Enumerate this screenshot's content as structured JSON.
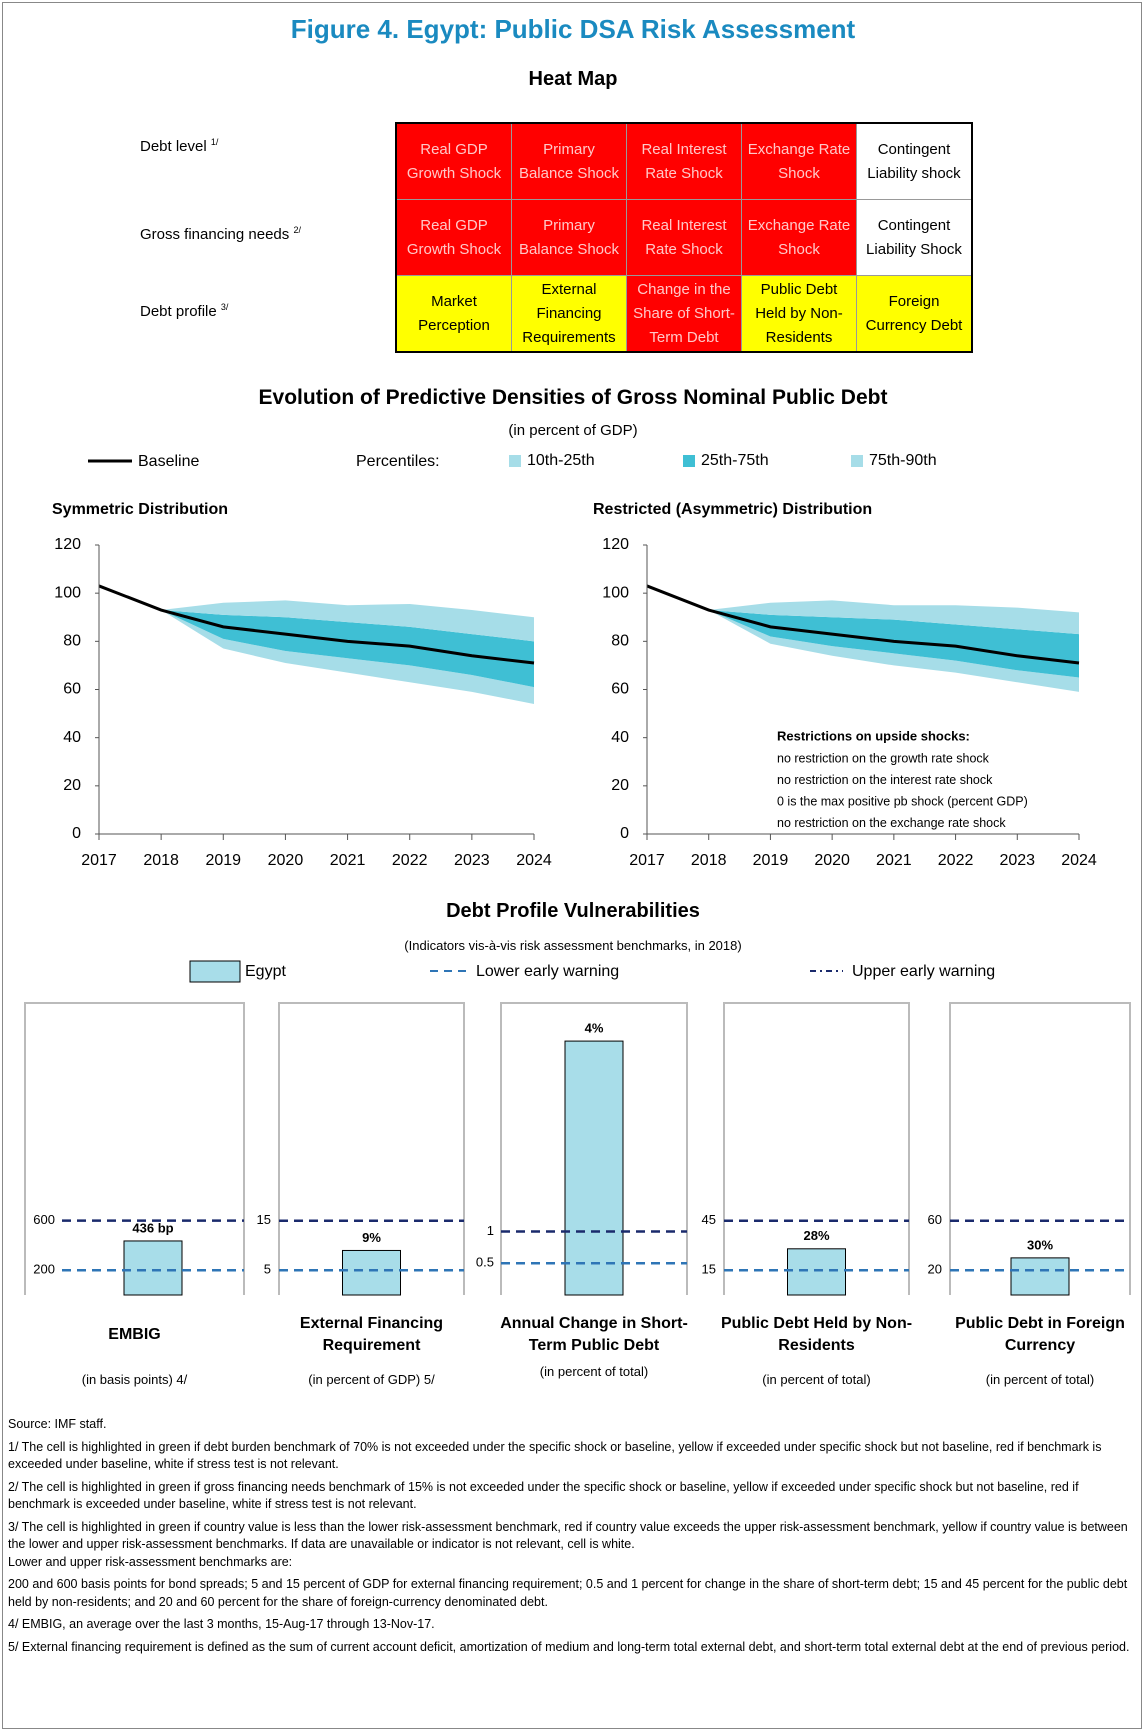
{
  "title": "Figure 4. Egypt: Public DSA Risk Assessment",
  "heat_map": {
    "title": "Heat Map",
    "rows": [
      {
        "label": "Debt level",
        "note": "1/",
        "cells": [
          {
            "text": "Real GDP Growth Shock",
            "color": "#ff0000"
          },
          {
            "text": "Primary Balance Shock",
            "color": "#ff0000"
          },
          {
            "text": "Real Interest Rate Shock",
            "color": "#ff0000"
          },
          {
            "text": "Exchange Rate Shock",
            "color": "#ff0000"
          },
          {
            "text": "Contingent Liability shock",
            "color": "#ffffff"
          }
        ]
      },
      {
        "label": "Gross financing needs",
        "note": "2/",
        "cells": [
          {
            "text": "Real GDP Growth Shock",
            "color": "#ff0000"
          },
          {
            "text": "Primary Balance Shock",
            "color": "#ff0000"
          },
          {
            "text": "Real Interest Rate Shock",
            "color": "#ff0000"
          },
          {
            "text": "Exchange Rate Shock",
            "color": "#ff0000"
          },
          {
            "text": "Contingent Liability Shock",
            "color": "#ffffff"
          }
        ]
      },
      {
        "label": "Debt profile",
        "note": "3/",
        "cells": [
          {
            "text": "Market Perception",
            "color": "#ffff00"
          },
          {
            "text": "External Financing Requirements",
            "color": "#ffff00"
          },
          {
            "text": "Change in the Share of Short-Term Debt",
            "color": "#ff0000"
          },
          {
            "text": "Public Debt Held by Non-Residents",
            "color": "#ffff00"
          },
          {
            "text": "Foreign Currency Debt",
            "color": "#ffff00"
          }
        ]
      }
    ]
  },
  "fan_section": {
    "title": "Evolution of Predictive Densities of Gross Nominal Public Debt",
    "subtitle": "(in percent of GDP)",
    "percentiles_label": "Percentiles:"
  },
  "chart_data": [
    {
      "type": "fan",
      "title": "Symmetric Distribution",
      "x": [
        2017,
        2018,
        2019,
        2020,
        2021,
        2022,
        2023,
        2024
      ],
      "xlim": [
        2017,
        2024
      ],
      "xticks": [
        2017,
        2018,
        2019,
        2020,
        2021,
        2022,
        2023,
        2024
      ],
      "ylim": [
        0,
        120
      ],
      "yticks": [
        0,
        20,
        40,
        60,
        80,
        100,
        120
      ],
      "series": [
        {
          "name": "Baseline",
          "color": "#000000",
          "values": [
            103,
            93,
            86,
            83,
            80,
            78,
            74,
            71
          ]
        }
      ],
      "bands": [
        {
          "name": "10th-25th",
          "color": "#a6dde8",
          "lower": [
            null,
            93,
            77,
            71,
            67,
            63,
            59,
            54
          ],
          "upper": [
            null,
            93,
            81,
            76,
            73,
            70,
            66,
            61
          ]
        },
        {
          "name": "25th-75th",
          "color": "#3fbfd4",
          "lower": [
            null,
            93,
            81,
            76,
            73,
            70,
            66,
            61
          ],
          "upper": [
            null,
            93,
            91,
            90,
            88,
            86,
            83,
            80
          ]
        },
        {
          "name": "75th-90th",
          "color": "#a6dde8",
          "lower": [
            null,
            93,
            91,
            90,
            88,
            86,
            83,
            80
          ],
          "upper": [
            null,
            93,
            96,
            97,
            95,
            95.5,
            93,
            90
          ]
        }
      ]
    },
    {
      "type": "fan",
      "title": "Restricted (Asymmetric) Distribution",
      "x": [
        2017,
        2018,
        2019,
        2020,
        2021,
        2022,
        2023,
        2024
      ],
      "xlim": [
        2017,
        2024
      ],
      "xticks": [
        2017,
        2018,
        2019,
        2020,
        2021,
        2022,
        2023,
        2024
      ],
      "ylim": [
        0,
        120
      ],
      "yticks": [
        0,
        20,
        40,
        60,
        80,
        100,
        120
      ],
      "series": [
        {
          "color": "#000000",
          "values": [
            103,
            93,
            86,
            83,
            80,
            78,
            74,
            71
          ]
        }
      ],
      "bands": [
        {
          "color": "#a6dde8",
          "lower": [
            null,
            93,
            79,
            74,
            70,
            67,
            63,
            59
          ],
          "upper": [
            null,
            93,
            82,
            78,
            75,
            72,
            68,
            65
          ]
        },
        {
          "color": "#3fbfd4",
          "lower": [
            null,
            93,
            82,
            78,
            75,
            72,
            68,
            65
          ],
          "upper": [
            null,
            93,
            91,
            90,
            89,
            87,
            85,
            83
          ]
        },
        {
          "color": "#a6dde8",
          "lower": [
            null,
            93,
            91,
            90,
            89,
            87,
            85,
            83
          ],
          "upper": [
            null,
            93,
            96,
            97,
            95,
            95,
            94,
            92
          ]
        }
      ],
      "annotation": {
        "title": "Restrictions on upside shocks:",
        "lines": [
          "no restriction on the growth rate shock",
          "no restriction on the interest rate shock",
          "0 is the max positive pb shock (percent GDP)",
          "no restriction on the exchange rate shock"
        ]
      }
    },
    {
      "type": "bar",
      "title": "EMBIG",
      "subtitle": "(in basis points) 4/",
      "values": [
        436
      ],
      "value_labels": [
        "436 bp"
      ],
      "ylim": [
        0,
        2356
      ],
      "yticks": [
        200,
        600
      ]
    },
    {
      "type": "bar",
      "title": "External Financing Requirement",
      "subtitle": "(in percent of GDP) 5/",
      "values": [
        9
      ],
      "value_labels": [
        "9%"
      ],
      "ylim": [
        0,
        59
      ],
      "yticks": [
        5,
        15
      ]
    },
    {
      "type": "bar",
      "title": "Annual Change in Short-Term Public Debt",
      "subtitle": "(in percent of total)",
      "values": [
        4
      ],
      "value_labels": [
        "4%"
      ],
      "ylim": [
        0,
        4.6
      ],
      "yticks": [
        0.5,
        1
      ]
    },
    {
      "type": "bar",
      "title": "Public Debt Held by Non-Residents",
      "subtitle": "(in percent of total)",
      "values": [
        28
      ],
      "value_labels": [
        "28%"
      ],
      "ylim": [
        0,
        177
      ],
      "yticks": [
        15,
        45
      ]
    },
    {
      "type": "bar",
      "title": "Public Debt in Foreign Currency",
      "subtitle": "(in percent of total)",
      "values": [
        30
      ],
      "value_labels": [
        "30%"
      ],
      "ylim": [
        0,
        236
      ],
      "yticks": [
        20,
        60
      ]
    }
  ],
  "dpv_section": {
    "title": "Debt Profile Vulnerabilities",
    "subtitle": "(Indicators vis-à-vis risk assessment benchmarks, in 2018)",
    "legend": {
      "country": {
        "name": "Egypt",
        "color": "#a8dde9"
      },
      "lower": {
        "name": "Lower early warning",
        "color": "#2e75b6"
      },
      "upper": {
        "name": "Upper early warning",
        "color": "#1a2a6c"
      }
    }
  },
  "notes": [
    "Source: IMF staff.",
    "1/ The cell is highlighted in green if debt burden benchmark of 70% is not exceeded under the specific shock or baseline, yellow if exceeded under specific shock but not baseline, red if benchmark is exceeded under baseline, white if stress test is not relevant.",
    "2/ The cell is highlighted in green if gross financing needs benchmark of 15% is not exceeded under the specific shock or baseline, yellow if exceeded under specific shock but not baseline, red if benchmark is exceeded under baseline, white if stress test is not relevant.",
    "3/ The cell is highlighted in green if country value is less  than the lower risk-assessment benchmark, red if country value exceeds the upper risk-assessment benchmark, yellow if country value is between the lower and upper risk-assessment benchmarks. If data are unavailable or indicator is not relevant, cell is white.",
    "Lower and upper risk-assessment benchmarks are:",
    "200 and 600 basis points for bond spreads; 5 and 15 percent of GDP for external financing requirement; 0.5 and 1 percent for change in the share of short-term debt; 15 and 45 percent for the public debt held by non-residents; and 20 and 60 percent for the share of foreign-currency denominated debt.",
    "4/ EMBIG, an average over the last 3 months, 15-Aug-17 through 13-Nov-17.",
    "5/ External financing requirement is defined as the sum of current account deficit, amortization of medium and long-term total external debt, and short-term total external debt at the end of previous period."
  ]
}
